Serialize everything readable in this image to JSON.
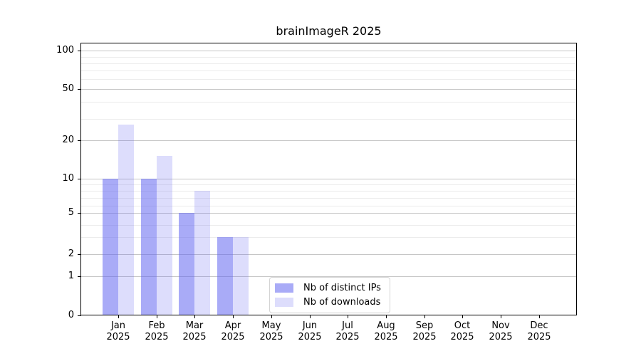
{
  "figure": {
    "title": "brainImageR 2025"
  },
  "chart_data": {
    "type": "bar",
    "title": "brainImageR 2025",
    "categories": [
      "Jan",
      "Feb",
      "Mar",
      "Apr",
      "May",
      "Jun",
      "Jul",
      "Aug",
      "Sep",
      "Oct",
      "Nov",
      "Dec"
    ],
    "year": "2025",
    "series": [
      {
        "name": "Nb of distinct IPs",
        "color": "rgba(99,102,241,0.55)",
        "color_hex": "#a9aaf8",
        "values": [
          10,
          10,
          5,
          3,
          0,
          0,
          0,
          0,
          0,
          0,
          0,
          0
        ]
      },
      {
        "name": "Nb of downloads",
        "color": "rgba(99,102,241,0.22)",
        "color_hex": "#dbdcfa",
        "values": [
          27,
          15,
          8,
          3,
          0,
          0,
          0,
          0,
          0,
          0,
          0,
          0
        ]
      }
    ],
    "yscale": "log-like with 0 baseline",
    "y_ticks_major": [
      100,
      50,
      20,
      10,
      5,
      2,
      1,
      0
    ],
    "y_ticks_minor": [
      90,
      80,
      70,
      60,
      40,
      30,
      9,
      8,
      7,
      6,
      4,
      3
    ],
    "ylim": [
      0,
      120
    ],
    "grid": "horizontal",
    "legend_position": "lower center"
  },
  "colors": {
    "grid_major": "#c6c6c6",
    "grid_minor": "#ececec",
    "spine": "#000000",
    "background": "#ffffff",
    "text": "#000000"
  }
}
